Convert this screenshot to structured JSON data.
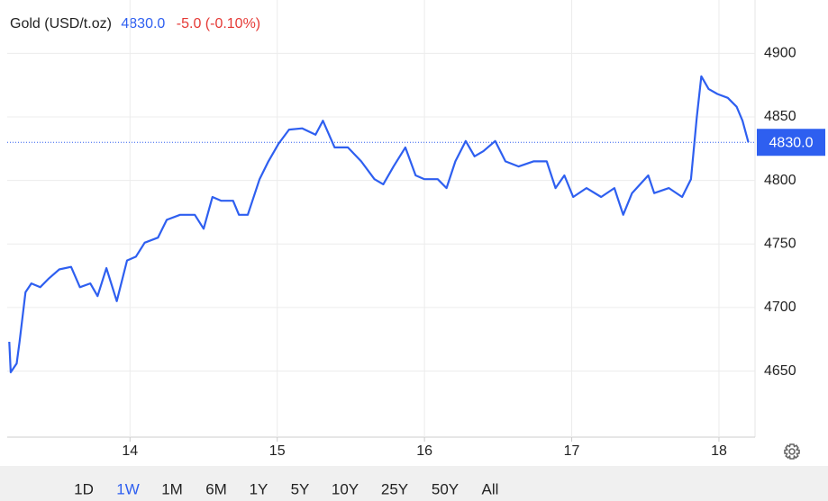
{
  "header": {
    "title": "Gold (USD/t.oz)",
    "price": "4830.0",
    "change": "-5.0 (-0.10%)"
  },
  "chart_data": {
    "type": "line",
    "x": [
      13.18,
      13.19,
      13.23,
      13.25,
      13.29,
      13.33,
      13.39,
      13.45,
      13.52,
      13.6,
      13.66,
      13.73,
      13.78,
      13.84,
      13.91,
      13.98,
      14.04,
      14.1,
      14.19,
      14.25,
      14.34,
      14.44,
      14.5,
      14.56,
      14.62,
      14.7,
      14.74,
      14.8,
      14.88,
      14.94,
      15.01,
      15.08,
      15.17,
      15.26,
      15.31,
      15.39,
      15.48,
      15.57,
      15.66,
      15.72,
      15.79,
      15.87,
      15.94,
      16.0,
      16.09,
      16.15,
      16.21,
      16.28,
      16.34,
      16.4,
      16.48,
      16.55,
      16.64,
      16.74,
      16.83,
      16.89,
      16.95,
      17.01,
      17.1,
      17.2,
      17.29,
      17.35,
      17.41,
      17.52,
      17.56,
      17.66,
      17.75,
      17.81,
      17.85,
      17.88,
      17.93,
      17.99,
      18.06,
      18.12,
      18.16,
      18.2
    ],
    "series": [
      {
        "color": "#2e5ff0",
        "values": [
          4673,
          4649,
          4656,
          4673,
          4712,
          4719,
          4716,
          4723,
          4730,
          4732,
          4716,
          4719,
          4709,
          4731,
          4705,
          4737,
          4740,
          4751,
          4755,
          4769,
          4773,
          4773,
          4762,
          4787,
          4784,
          4784,
          4773,
          4773,
          4801,
          4815,
          4829,
          4840,
          4841,
          4836,
          4847,
          4826,
          4826,
          4815,
          4801,
          4797,
          4811,
          4826,
          4804,
          4801,
          4801,
          4794,
          4815,
          4831,
          4819,
          4823,
          4831,
          4815,
          4811,
          4815,
          4815,
          4794,
          4804,
          4787,
          4794,
          4787,
          4794,
          4773,
          4790,
          4804,
          4790,
          4794,
          4787,
          4801,
          4850,
          4882,
          4872,
          4868,
          4865,
          4858,
          4847,
          4830
        ]
      }
    ],
    "xlim": [
      13.166,
      18.245
    ],
    "ylim": [
      4598,
      4942
    ],
    "xticks": [
      14,
      15,
      16,
      17,
      18
    ],
    "yticks": [
      4650,
      4700,
      4750,
      4800,
      4850,
      4900
    ],
    "grid": true,
    "reference_line": {
      "value": 4830,
      "label": "4830.0"
    }
  },
  "ranges": {
    "items": [
      "1D",
      "1W",
      "1M",
      "6M",
      "1Y",
      "5Y",
      "10Y",
      "25Y",
      "50Y",
      "All"
    ],
    "selected": "1W"
  }
}
